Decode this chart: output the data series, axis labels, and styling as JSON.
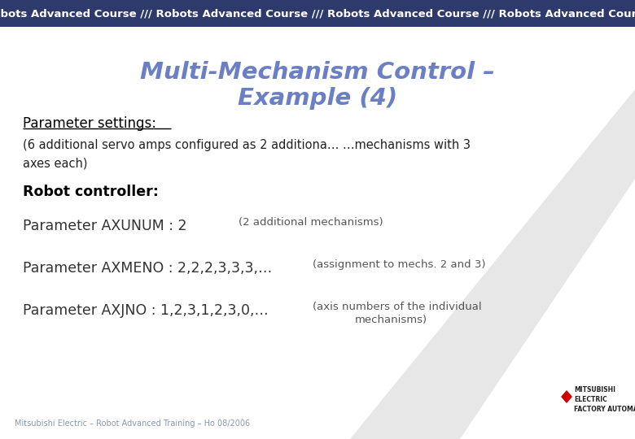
{
  "header_bg": "#2d3a6b",
  "header_text": "Robots Advanced Course /// Robots Advanced Course /// Robots Advanced Course /// Robots Advanced Course",
  "header_text_color": "#ffffff",
  "header_fontsize": 9.5,
  "bg_color": "#ffffff",
  "title_line1": "Multi-Mechanism Control –",
  "title_line2": "Example (4)",
  "title_color": "#6b7fc4",
  "title_fontsize": 21,
  "section1_label": "Parameter settings:",
  "section1_color": "#000000",
  "section1_fontsize": 12,
  "body_fontsize": 10.5,
  "body_color": "#222222",
  "body_line1": "(6 additional servo amps configured as 2 additiona… …mechanisms with 3",
  "body_line2": "axes each)",
  "section2_label": "Robot controller:",
  "section2_fontsize": 12.5,
  "param1_main": "Parameter AXUNUM : 2",
  "param1_note": "(2 additional mechanisms)",
  "param2_main": "Parameter AXMENO : 2,2,2,3,3,3,…",
  "param2_note": "(assignment to mechs. 2 and 3)",
  "param3_main": "Parameter AXJNO : 1,2,3,1,2,3,0,…",
  "param3_note_line1": "(axis numbers of the individual",
  "param3_note_line2": "mechanisms)",
  "param_main_fontsize": 12.5,
  "param_note_fontsize": 9.5,
  "footer_text": "Mitsubishi Electric – Robot Advanced Training – Ho 08/2006",
  "footer_color": "#8899aa",
  "footer_fontsize": 7,
  "mitsubishi_red": "#cc0000",
  "diag_color": "#d4d4d4"
}
